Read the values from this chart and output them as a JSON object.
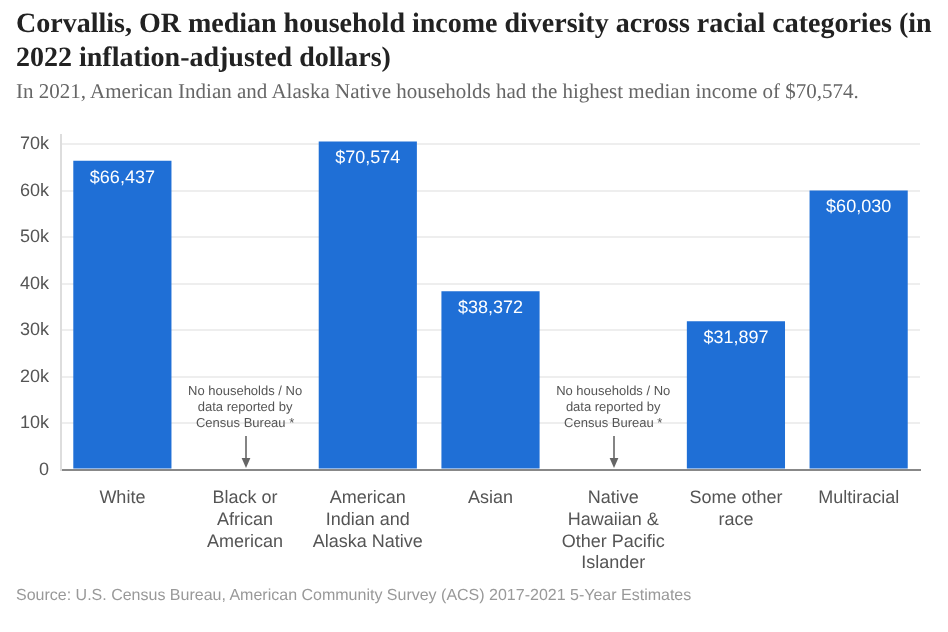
{
  "chart_data": {
    "type": "bar",
    "title": "Corvallis, OR median household income diversity across racial categories (in 2022 inflation-adjusted dollars)",
    "subtitle": "In 2021, American Indian and Alaska Native households had the highest median income of $70,574.",
    "categories": [
      "White",
      "Black or African American",
      "American Indian and Alaska Native",
      "Asian",
      "Native Hawaiian & Other Pacific Islander",
      "Some other race",
      "Multiracial"
    ],
    "values": [
      66437,
      null,
      70574,
      38372,
      null,
      31897,
      60030
    ],
    "value_labels": [
      "$66,437",
      null,
      "$70,574",
      "$38,372",
      null,
      "$31,897",
      "$60,030"
    ],
    "color": "#1f6fd6",
    "ylim": [
      0,
      72000
    ],
    "yticks": [
      {
        "value": 0,
        "label": "0"
      },
      {
        "value": 10000,
        "label": "10k"
      },
      {
        "value": 20000,
        "label": "20k"
      },
      {
        "value": 30000,
        "label": "30k"
      },
      {
        "value": 40000,
        "label": "40k"
      },
      {
        "value": 50000,
        "label": "50k"
      },
      {
        "value": 60000,
        "label": "60k"
      },
      {
        "value": 70000,
        "label": "70k"
      }
    ],
    "grid": "y",
    "annotations": [
      "No households / No data reported by Census Bureau *",
      "No households / No data reported by Census Bureau *",
      "Source: U.S. Census Bureau, American Community Survey (ACS) 2017-2021 5-Year Estimates"
    ]
  }
}
